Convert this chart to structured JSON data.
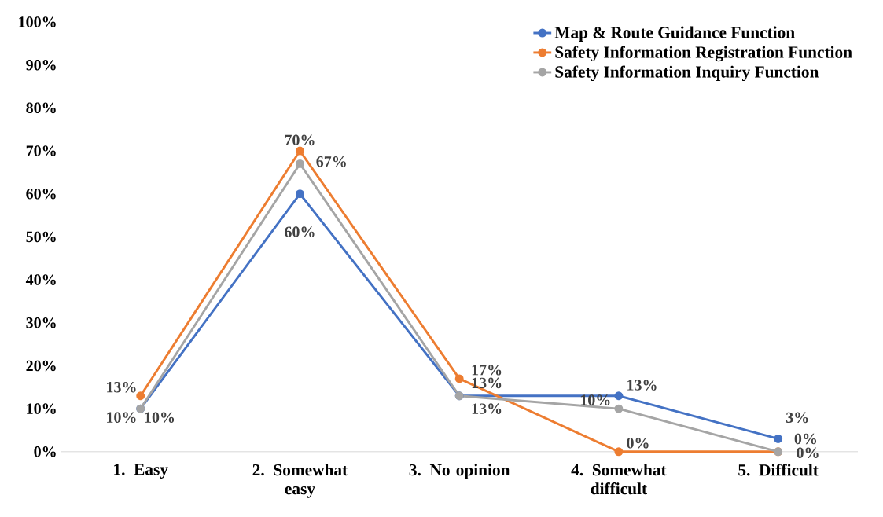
{
  "chart_data": {
    "type": "line",
    "categories": [
      "1. Easy",
      "2. Somewhat easy",
      "3. No opinion",
      "4. Somewhat difficult",
      "5. Difficult"
    ],
    "series": [
      {
        "name": "Map & Route Guidance Function",
        "color": "#4472c4",
        "values": [
          10,
          60,
          13,
          13,
          3
        ],
        "value_labels": [
          "10%",
          "60%",
          "13%",
          "13%",
          "3%"
        ]
      },
      {
        "name": "Safety Information Registration Function",
        "color": "#ed7d31",
        "values": [
          13,
          70,
          17,
          0,
          0
        ],
        "value_labels": [
          "13%",
          "70%",
          "17%",
          "0%",
          "0%"
        ]
      },
      {
        "name": "Safety Information Inquiry Function",
        "color": "#a5a5a5",
        "values": [
          10,
          67,
          13,
          10,
          0
        ],
        "value_labels": [
          "10%",
          "67%",
          "13%",
          "10%",
          "0%"
        ]
      }
    ],
    "ylim": [
      0,
      100
    ],
    "yticks": [
      {
        "value": 0,
        "label": "0%"
      },
      {
        "value": 10,
        "label": "10%"
      },
      {
        "value": 20,
        "label": "20%"
      },
      {
        "value": 30,
        "label": "30%"
      },
      {
        "value": 40,
        "label": "40%"
      },
      {
        "value": 50,
        "label": "50%"
      },
      {
        "value": 60,
        "label": "60%"
      },
      {
        "value": 70,
        "label": "70%"
      },
      {
        "value": 80,
        "label": "80%"
      },
      {
        "value": 90,
        "label": "90%"
      },
      {
        "value": 100,
        "label": "100%"
      }
    ],
    "grid": false,
    "legend": "top right",
    "marker": "circle",
    "line_style": "solid"
  }
}
